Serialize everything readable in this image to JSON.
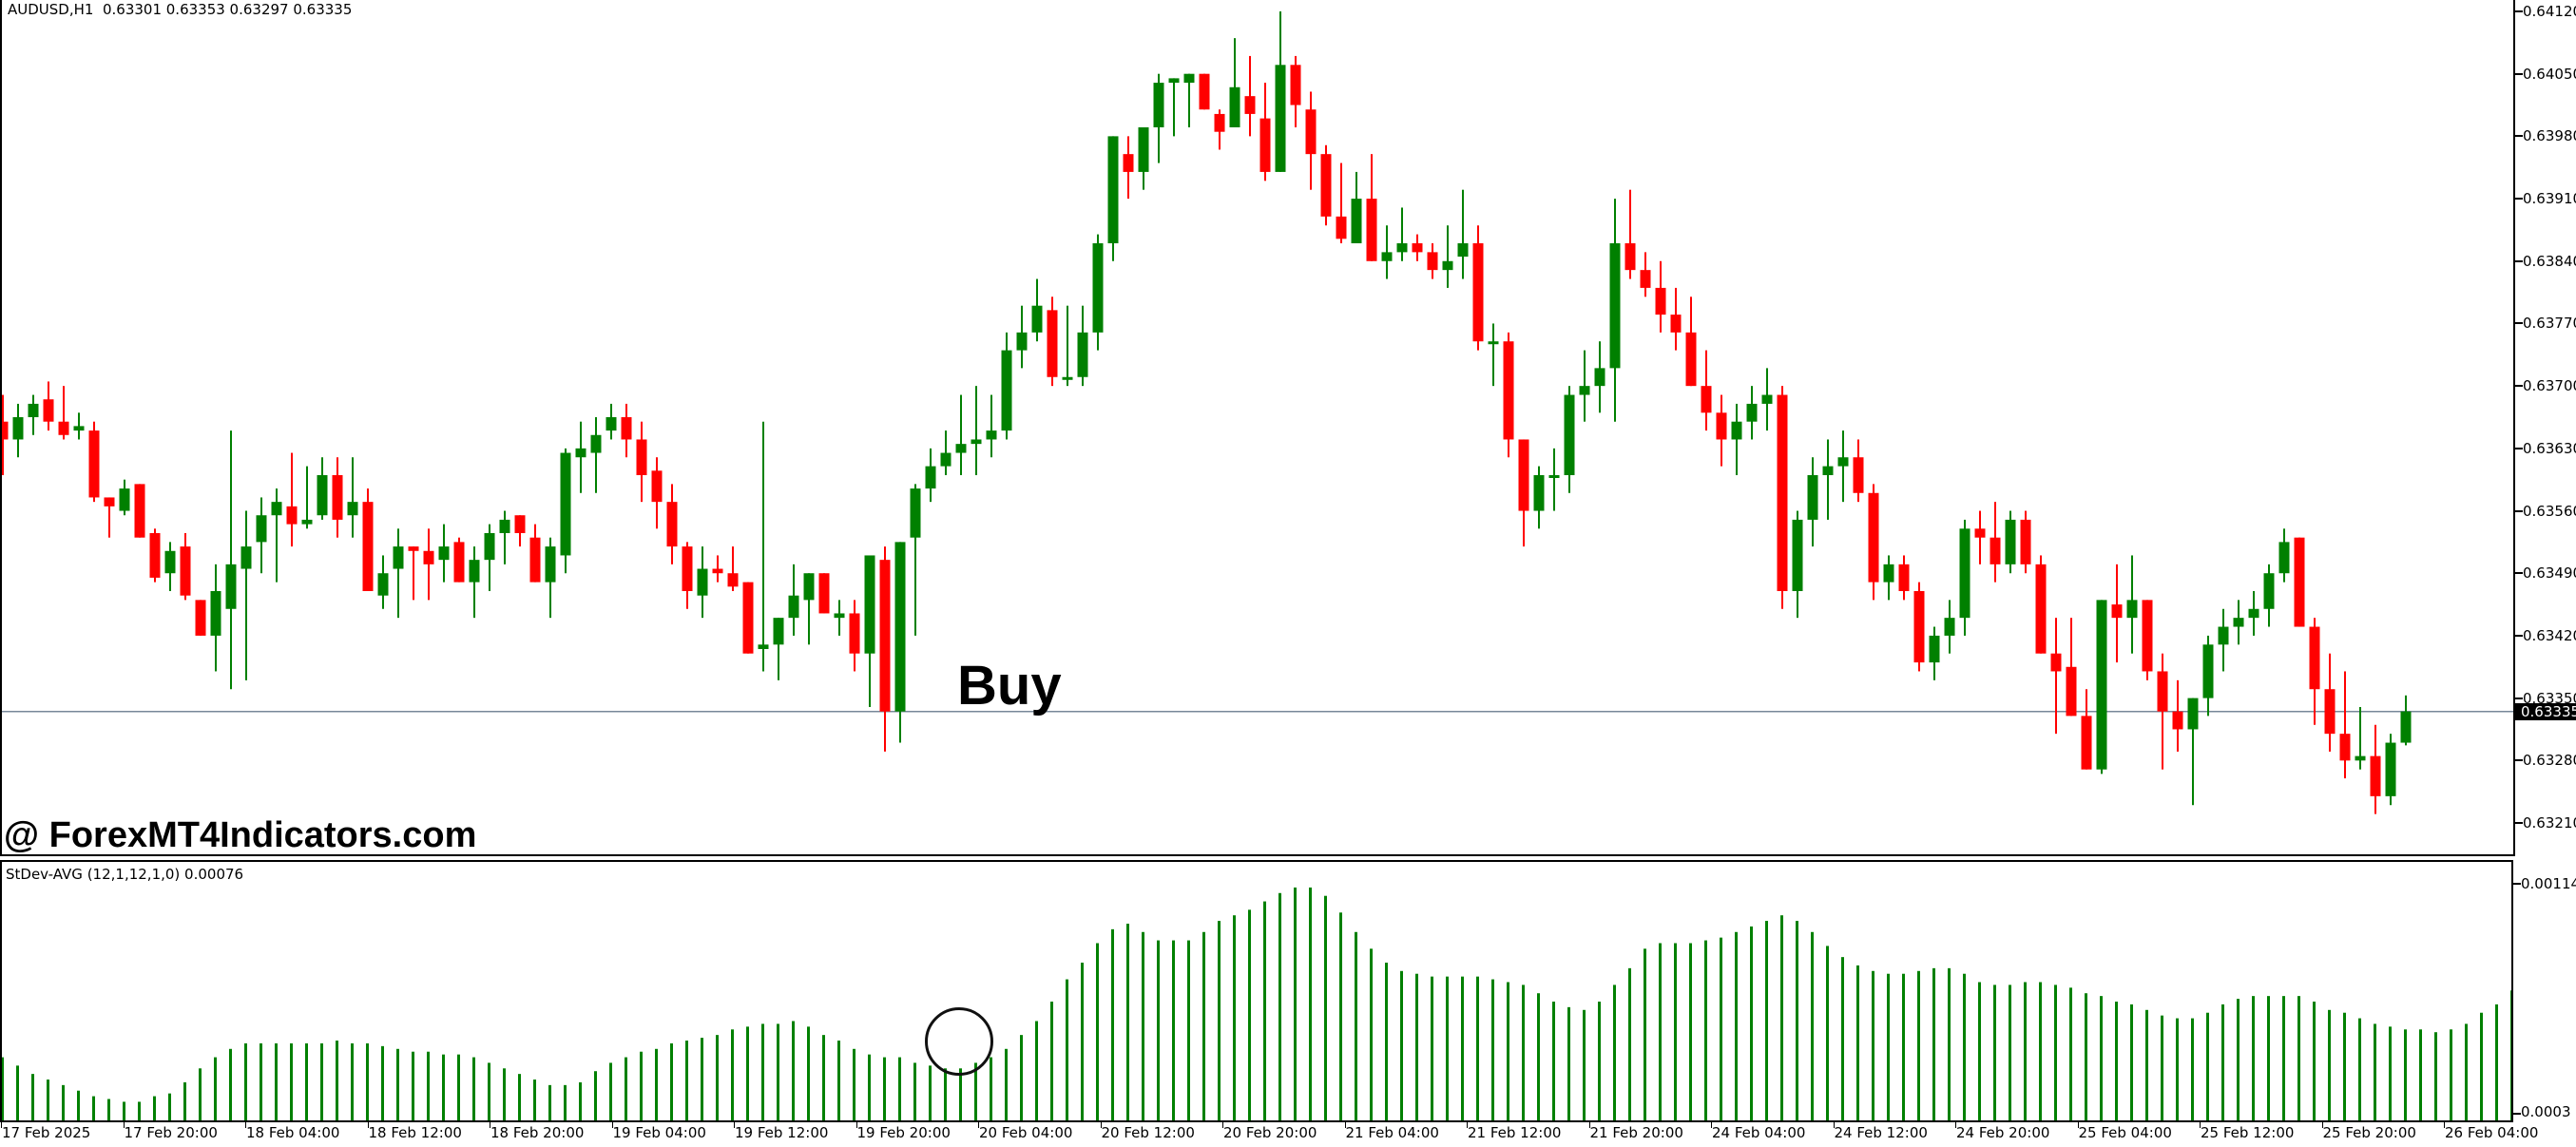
{
  "symbol_header": {
    "symbol": "AUDUSD,H1",
    "ohlc": "0.63301 0.63353 0.63297 0.63335",
    "text": "AUDUSD,H1  0.63301 0.63353 0.63297 0.63335"
  },
  "watermark": "@ ForexMT4Indicators.com",
  "signal_label": "Buy",
  "indicator": {
    "label": "StDev-AVG (12,1,12,1,0) 0.00076",
    "axis_max": "0.00114",
    "axis_min": "0.0003",
    "color": "#008000"
  },
  "colors": {
    "bull": "#008000",
    "bear": "#ff0000",
    "price_line": "#778899",
    "background": "#ffffff"
  },
  "price_axis": {
    "labels": [
      "0.64120",
      "0.64050",
      "0.63980",
      "0.63910",
      "0.63840",
      "0.63770",
      "0.63700",
      "0.63630",
      "0.63560",
      "0.63490",
      "0.63420",
      "0.63350",
      "0.63280",
      "0.63210"
    ],
    "current_price": "0.63335"
  },
  "time_axis": {
    "labels": [
      "17 Feb 2025",
      "17 Feb 20:00",
      "18 Feb 04:00",
      "18 Feb 12:00",
      "18 Feb 20:00",
      "19 Feb 04:00",
      "19 Feb 12:00",
      "19 Feb 20:00",
      "20 Feb 04:00",
      "20 Feb 12:00",
      "20 Feb 20:00",
      "21 Feb 04:00",
      "21 Feb 12:00",
      "21 Feb 20:00",
      "24 Feb 04:00",
      "24 Feb 12:00",
      "24 Feb 20:00",
      "25 Feb 04:00",
      "25 Feb 12:00",
      "25 Feb 20:00",
      "26 Feb 04:00"
    ]
  },
  "chart_data": {
    "type": "candlestick",
    "title": "AUDUSD,H1",
    "ylim": [
      0.6318,
      0.6413
    ],
    "indicator_ylim": [
      0.0003,
      0.00114
    ],
    "candles": [
      [
        0.6366,
        0.6369,
        0.636,
        0.6364
      ],
      [
        0.6364,
        0.6368,
        0.6362,
        0.63665
      ],
      [
        0.63665,
        0.6369,
        0.63645,
        0.6368
      ],
      [
        0.63685,
        0.63705,
        0.6365,
        0.6366
      ],
      [
        0.6366,
        0.637,
        0.6364,
        0.63645
      ],
      [
        0.6365,
        0.6367,
        0.6364,
        0.63655
      ],
      [
        0.6365,
        0.6366,
        0.6357,
        0.63575
      ],
      [
        0.63575,
        0.6357,
        0.6353,
        0.63565
      ],
      [
        0.6356,
        0.63595,
        0.63555,
        0.63585
      ],
      [
        0.6359,
        0.6359,
        0.6354,
        0.6353
      ],
      [
        0.63535,
        0.6354,
        0.6348,
        0.63485
      ],
      [
        0.6349,
        0.63525,
        0.6347,
        0.63515
      ],
      [
        0.6352,
        0.63535,
        0.6346,
        0.63465
      ],
      [
        0.6346,
        0.6346,
        0.6342,
        0.6342
      ],
      [
        0.6342,
        0.635,
        0.6338,
        0.6347
      ],
      [
        0.6345,
        0.6365,
        0.6336,
        0.635
      ],
      [
        0.63495,
        0.6356,
        0.6337,
        0.6352
      ],
      [
        0.63525,
        0.63575,
        0.6349,
        0.63555
      ],
      [
        0.63555,
        0.63585,
        0.6348,
        0.6357
      ],
      [
        0.63565,
        0.63625,
        0.6352,
        0.63545
      ],
      [
        0.63545,
        0.6361,
        0.6354,
        0.6355
      ],
      [
        0.63555,
        0.6362,
        0.6355,
        0.636
      ],
      [
        0.636,
        0.6362,
        0.6353,
        0.6355
      ],
      [
        0.63555,
        0.6362,
        0.6353,
        0.6357
      ],
      [
        0.6357,
        0.63585,
        0.6347,
        0.6347
      ],
      [
        0.63465,
        0.6351,
        0.6345,
        0.6349
      ],
      [
        0.63495,
        0.6354,
        0.6344,
        0.6352
      ],
      [
        0.6352,
        0.6352,
        0.6346,
        0.63515
      ],
      [
        0.63515,
        0.6354,
        0.6346,
        0.635
      ],
      [
        0.63505,
        0.63545,
        0.6348,
        0.6352
      ],
      [
        0.63525,
        0.6353,
        0.6348,
        0.6348
      ],
      [
        0.6348,
        0.6352,
        0.6344,
        0.63505
      ],
      [
        0.63505,
        0.63545,
        0.6347,
        0.63535
      ],
      [
        0.63535,
        0.6356,
        0.635,
        0.6355
      ],
      [
        0.63555,
        0.63545,
        0.6352,
        0.63535
      ],
      [
        0.6353,
        0.63545,
        0.6348,
        0.6348
      ],
      [
        0.6348,
        0.6353,
        0.6344,
        0.6352
      ],
      [
        0.6351,
        0.6363,
        0.6349,
        0.63625
      ],
      [
        0.6362,
        0.6366,
        0.6358,
        0.6363
      ],
      [
        0.63625,
        0.63665,
        0.6358,
        0.63645
      ],
      [
        0.6365,
        0.6368,
        0.6364,
        0.63665
      ],
      [
        0.63665,
        0.6368,
        0.6362,
        0.6364
      ],
      [
        0.6364,
        0.6366,
        0.6357,
        0.636
      ],
      [
        0.63605,
        0.6362,
        0.6354,
        0.6357
      ],
      [
        0.6357,
        0.6359,
        0.635,
        0.6352
      ],
      [
        0.6352,
        0.63525,
        0.6345,
        0.6347
      ],
      [
        0.63465,
        0.6352,
        0.6344,
        0.63495
      ],
      [
        0.63495,
        0.6351,
        0.6348,
        0.6349
      ],
      [
        0.6349,
        0.6352,
        0.6347,
        0.63475
      ],
      [
        0.6348,
        0.6348,
        0.6342,
        0.634
      ],
      [
        0.63405,
        0.6366,
        0.6338,
        0.6341
      ],
      [
        0.6341,
        0.6344,
        0.6337,
        0.6344
      ],
      [
        0.6344,
        0.635,
        0.6342,
        0.63465
      ],
      [
        0.6346,
        0.6349,
        0.6341,
        0.6349
      ],
      [
        0.6349,
        0.6349,
        0.6346,
        0.63445
      ],
      [
        0.6344,
        0.6346,
        0.6342,
        0.63445
      ],
      [
        0.63445,
        0.6346,
        0.6338,
        0.634
      ],
      [
        0.634,
        0.6351,
        0.6334,
        0.6351
      ],
      [
        0.63505,
        0.6352,
        0.6329,
        0.63335
      ],
      [
        0.63335,
        0.63525,
        0.633,
        0.63525
      ],
      [
        0.6353,
        0.6359,
        0.6342,
        0.63585
      ],
      [
        0.63585,
        0.6363,
        0.6357,
        0.6361
      ],
      [
        0.6361,
        0.6365,
        0.636,
        0.63625
      ],
      [
        0.63625,
        0.6369,
        0.636,
        0.63635
      ],
      [
        0.63635,
        0.637,
        0.636,
        0.6364
      ],
      [
        0.6364,
        0.6369,
        0.6362,
        0.6365
      ],
      [
        0.6365,
        0.6376,
        0.6364,
        0.6374
      ],
      [
        0.6374,
        0.6379,
        0.6372,
        0.6376
      ],
      [
        0.6376,
        0.6382,
        0.6375,
        0.6379
      ],
      [
        0.63785,
        0.638,
        0.637,
        0.6371
      ],
      [
        0.6371,
        0.6379,
        0.637,
        0.6371
      ],
      [
        0.6371,
        0.6379,
        0.637,
        0.6376
      ],
      [
        0.6376,
        0.6387,
        0.6374,
        0.6386
      ],
      [
        0.6386,
        0.6398,
        0.6384,
        0.6398
      ],
      [
        0.6396,
        0.6398,
        0.6391,
        0.6394
      ],
      [
        0.6394,
        0.6399,
        0.6392,
        0.6399
      ],
      [
        0.6399,
        0.6405,
        0.6395,
        0.6404
      ],
      [
        0.6404,
        0.64045,
        0.6398,
        0.64045
      ],
      [
        0.6404,
        0.6405,
        0.6399,
        0.6405
      ],
      [
        0.6405,
        0.6405,
        0.6401,
        0.6401
      ],
      [
        0.64005,
        0.6401,
        0.63965,
        0.63985
      ],
      [
        0.6399,
        0.6409,
        0.6399,
        0.64035
      ],
      [
        0.64025,
        0.6407,
        0.6398,
        0.64005
      ],
      [
        0.64,
        0.6404,
        0.6393,
        0.6394
      ],
      [
        0.6394,
        0.6412,
        0.6394,
        0.6406
      ],
      [
        0.6406,
        0.6407,
        0.6399,
        0.64015
      ],
      [
        0.6401,
        0.6403,
        0.6392,
        0.6396
      ],
      [
        0.6396,
        0.6397,
        0.6388,
        0.6389
      ],
      [
        0.6389,
        0.6395,
        0.6386,
        0.63865
      ],
      [
        0.6386,
        0.6394,
        0.6386,
        0.6391
      ],
      [
        0.6391,
        0.6396,
        0.6384,
        0.6384
      ],
      [
        0.6384,
        0.6388,
        0.6382,
        0.6385
      ],
      [
        0.6385,
        0.639,
        0.6384,
        0.6386
      ],
      [
        0.6386,
        0.6387,
        0.6384,
        0.6385
      ],
      [
        0.6385,
        0.6386,
        0.6382,
        0.6383
      ],
      [
        0.6383,
        0.6388,
        0.6381,
        0.6384
      ],
      [
        0.63845,
        0.6392,
        0.6382,
        0.6386
      ],
      [
        0.6386,
        0.6388,
        0.6374,
        0.6375
      ],
      [
        0.6375,
        0.6377,
        0.637,
        0.6375
      ],
      [
        0.6375,
        0.6376,
        0.6362,
        0.6364
      ],
      [
        0.6364,
        0.6362,
        0.6352,
        0.6356
      ],
      [
        0.6356,
        0.6361,
        0.6354,
        0.636
      ],
      [
        0.636,
        0.6363,
        0.6356,
        0.636
      ],
      [
        0.636,
        0.637,
        0.6358,
        0.6369
      ],
      [
        0.6369,
        0.6374,
        0.6366,
        0.637
      ],
      [
        0.637,
        0.6375,
        0.6367,
        0.6372
      ],
      [
        0.6372,
        0.6391,
        0.6366,
        0.6386
      ],
      [
        0.6386,
        0.6392,
        0.6382,
        0.6383
      ],
      [
        0.6383,
        0.6385,
        0.638,
        0.6381
      ],
      [
        0.6381,
        0.6384,
        0.6376,
        0.6378
      ],
      [
        0.6378,
        0.6381,
        0.6374,
        0.6376
      ],
      [
        0.6376,
        0.638,
        0.637,
        0.637
      ],
      [
        0.637,
        0.6374,
        0.6365,
        0.6367
      ],
      [
        0.6367,
        0.6369,
        0.6361,
        0.6364
      ],
      [
        0.6364,
        0.6368,
        0.636,
        0.6366
      ],
      [
        0.6366,
        0.637,
        0.6364,
        0.6368
      ],
      [
        0.6368,
        0.6372,
        0.6365,
        0.6369
      ],
      [
        0.6369,
        0.637,
        0.6345,
        0.6347
      ],
      [
        0.6347,
        0.6356,
        0.6344,
        0.6355
      ],
      [
        0.6355,
        0.6362,
        0.6352,
        0.636
      ],
      [
        0.636,
        0.6364,
        0.6355,
        0.6361
      ],
      [
        0.6361,
        0.6365,
        0.6357,
        0.6362
      ],
      [
        0.6362,
        0.6364,
        0.6357,
        0.6358
      ],
      [
        0.6358,
        0.6359,
        0.6346,
        0.6348
      ],
      [
        0.6348,
        0.6351,
        0.6346,
        0.635
      ],
      [
        0.635,
        0.6351,
        0.6346,
        0.6347
      ],
      [
        0.6347,
        0.6348,
        0.6338,
        0.6339
      ],
      [
        0.6339,
        0.6343,
        0.6337,
        0.6342
      ],
      [
        0.6342,
        0.6346,
        0.634,
        0.6344
      ],
      [
        0.6344,
        0.6355,
        0.6342,
        0.6354
      ],
      [
        0.6354,
        0.6356,
        0.635,
        0.6353
      ],
      [
        0.6353,
        0.6357,
        0.6348,
        0.635
      ],
      [
        0.635,
        0.6356,
        0.6349,
        0.6355
      ],
      [
        0.6355,
        0.6356,
        0.6349,
        0.635
      ],
      [
        0.635,
        0.6351,
        0.634,
        0.634
      ],
      [
        0.634,
        0.6344,
        0.6331,
        0.6338
      ],
      [
        0.63385,
        0.6344,
        0.6333,
        0.6333
      ],
      [
        0.6333,
        0.6336,
        0.6327,
        0.6327
      ],
      [
        0.6327,
        0.6346,
        0.63265,
        0.6346
      ],
      [
        0.63455,
        0.635,
        0.6339,
        0.6344
      ],
      [
        0.6344,
        0.6351,
        0.634,
        0.6346
      ],
      [
        0.6346,
        0.6346,
        0.6337,
        0.6338
      ],
      [
        0.6338,
        0.634,
        0.6327,
        0.63335
      ],
      [
        0.63335,
        0.6337,
        0.6329,
        0.63315
      ],
      [
        0.63315,
        0.6335,
        0.6323,
        0.6335
      ],
      [
        0.6335,
        0.6342,
        0.6333,
        0.6341
      ],
      [
        0.6341,
        0.6345,
        0.6338,
        0.6343
      ],
      [
        0.6343,
        0.6346,
        0.6341,
        0.6344
      ],
      [
        0.6344,
        0.6347,
        0.6342,
        0.6345
      ],
      [
        0.6345,
        0.635,
        0.6343,
        0.6349
      ],
      [
        0.6349,
        0.6354,
        0.6348,
        0.63525
      ],
      [
        0.6353,
        0.6353,
        0.6343,
        0.6343
      ],
      [
        0.6343,
        0.6344,
        0.6332,
        0.6336
      ],
      [
        0.6336,
        0.634,
        0.6329,
        0.6331
      ],
      [
        0.6331,
        0.6338,
        0.6326,
        0.6328
      ],
      [
        0.6328,
        0.6334,
        0.6327,
        0.63285
      ],
      [
        0.63285,
        0.6332,
        0.6322,
        0.6324
      ],
      [
        0.6324,
        0.6331,
        0.6323,
        0.633
      ],
      [
        0.633,
        0.63353,
        0.63297,
        0.63335
      ]
    ],
    "indicator_values": [
      0.00052,
      0.00049,
      0.00046,
      0.00044,
      0.00042,
      0.0004,
      0.00038,
      0.00037,
      0.00036,
      0.00036,
      0.00038,
      0.00039,
      0.00043,
      0.00048,
      0.00052,
      0.00055,
      0.00057,
      0.00057,
      0.00057,
      0.00057,
      0.00057,
      0.00057,
      0.00058,
      0.00057,
      0.00057,
      0.00056,
      0.00055,
      0.00054,
      0.00054,
      0.00053,
      0.00053,
      0.00052,
      0.0005,
      0.00048,
      0.00046,
      0.00044,
      0.00042,
      0.00042,
      0.00043,
      0.00047,
      0.0005,
      0.00052,
      0.00054,
      0.00055,
      0.00057,
      0.00058,
      0.00059,
      0.0006,
      0.00062,
      0.00063,
      0.00064,
      0.00064,
      0.00065,
      0.00063,
      0.0006,
      0.00058,
      0.00055,
      0.00053,
      0.00052,
      0.00052,
      0.0005,
      0.00049,
      0.00048,
      0.00048,
      0.0005,
      0.00052,
      0.00055,
      0.0006,
      0.00065,
      0.00072,
      0.0008,
      0.00086,
      0.00093,
      0.00098,
      0.001,
      0.00097,
      0.00094,
      0.00094,
      0.00094,
      0.00097,
      0.00101,
      0.00103,
      0.00105,
      0.00108,
      0.00111,
      0.00113,
      0.00113,
      0.0011,
      0.00104,
      0.00097,
      0.00091,
      0.00086,
      0.00083,
      0.00082,
      0.00081,
      0.00081,
      0.00081,
      0.00081,
      0.0008,
      0.00079,
      0.00078,
      0.00075,
      0.00072,
      0.0007,
      0.00069,
      0.00072,
      0.00078,
      0.00084,
      0.00091,
      0.00093,
      0.00093,
      0.00093,
      0.00094,
      0.00095,
      0.00097,
      0.00099,
      0.00101,
      0.00103,
      0.00101,
      0.00097,
      0.00092,
      0.00088,
      0.00085,
      0.00083,
      0.00082,
      0.00082,
      0.00083,
      0.00084,
      0.00084,
      0.00082,
      0.00079,
      0.00078,
      0.00078,
      0.00079,
      0.00079,
      0.00078,
      0.00077,
      0.00075,
      0.00074,
      0.00072,
      0.00071,
      0.00069,
      0.00067,
      0.00066,
      0.00066,
      0.00068,
      0.00071,
      0.00073,
      0.00074,
      0.00074,
      0.00074,
      0.00074,
      0.00072,
      0.00069,
      0.00068,
      0.00066,
      0.00064,
      0.00063,
      0.00062,
      0.00062,
      0.00061,
      0.00062,
      0.00064,
      0.00068,
      0.00071,
      0.00076
    ]
  }
}
